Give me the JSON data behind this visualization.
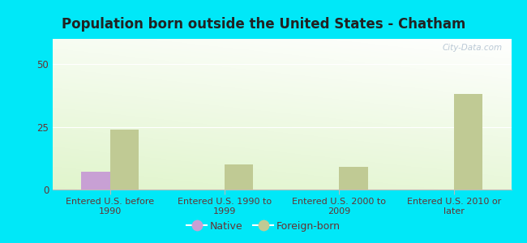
{
  "title": "Population born outside the United States - Chatham",
  "categories": [
    "Entered U.S. before\n1990",
    "Entered U.S. 1990 to\n1999",
    "Entered U.S. 2000 to\n2009",
    "Entered U.S. 2010 or\nlater"
  ],
  "native_values": [
    7,
    0,
    0,
    0
  ],
  "foreign_values": [
    24,
    10,
    9,
    38
  ],
  "native_color": "#c8a0d4",
  "foreign_color": "#c0ca94",
  "background_outer": "#00e8f8",
  "ylim": [
    0,
    60
  ],
  "yticks": [
    0,
    25,
    50
  ],
  "title_fontsize": 12,
  "tick_label_fontsize": 8,
  "axis_label_color": "#663333",
  "watermark_text": "City-Data.com",
  "legend_native": "Native",
  "legend_foreign": "Foreign-born"
}
